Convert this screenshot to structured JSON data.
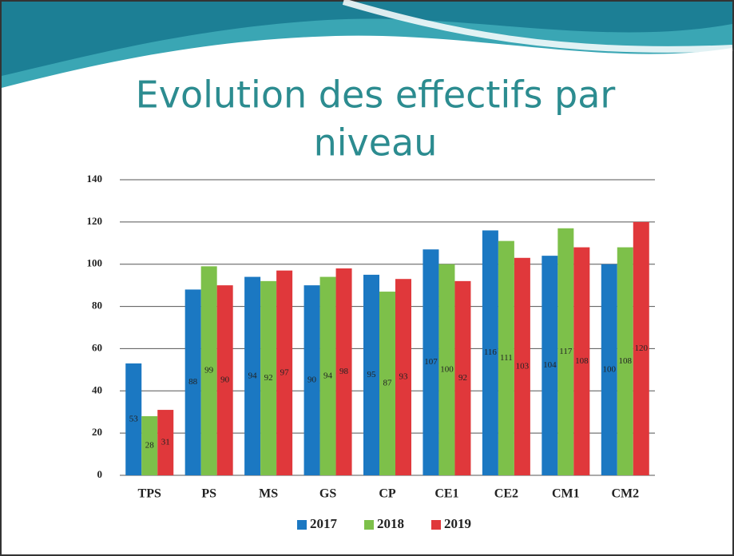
{
  "title": [
    "Evolution des effectifs par",
    "niveau"
  ],
  "chart_data": {
    "type": "bar",
    "categories": [
      "TPS",
      "PS",
      "MS",
      "GS",
      "CP",
      "CE1",
      "CE2",
      "CM1",
      "CM2"
    ],
    "series": [
      {
        "name": "2017",
        "color": "#1b78c2",
        "values": [
          53,
          88,
          94,
          90,
          95,
          107,
          116,
          104,
          100
        ]
      },
      {
        "name": "2018",
        "color": "#7dc04a",
        "values": [
          28,
          99,
          92,
          94,
          87,
          100,
          111,
          117,
          108
        ]
      },
      {
        "name": "2019",
        "color": "#e0383b",
        "values": [
          31,
          90,
          97,
          98,
          93,
          92,
          103,
          108,
          120
        ]
      }
    ],
    "ylim": [
      0,
      140
    ],
    "yticks": [
      0,
      20,
      40,
      60,
      80,
      100,
      120,
      140
    ],
    "grid": true,
    "legend": "bottom"
  }
}
